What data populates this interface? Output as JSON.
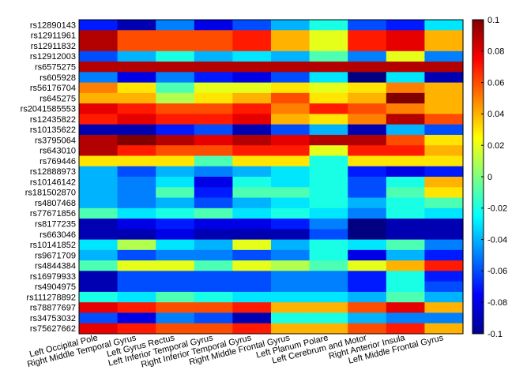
{
  "chart_data": {
    "type": "heatmap",
    "title": "",
    "xlabel": "",
    "ylabel": "",
    "colormap": "jet",
    "clim": [
      -0.1,
      0.1
    ],
    "colorbar_ticks": [
      0.1,
      0.08,
      0.06,
      0.04,
      0.02,
      0,
      -0.02,
      -0.04,
      -0.06,
      -0.08,
      -0.1
    ],
    "colorbar_tick_labels": [
      "0.1",
      "0.08",
      "0.06",
      "0.04",
      "0.02",
      "0",
      "-0.02",
      "-0.04",
      "-0.06",
      "-0.08",
      "-0.1"
    ],
    "columns": [
      "Left Occipital Pole",
      "Right Middle Temporal Gyrus",
      "Left Gyrus Rectus",
      "Left Inferior Temporal Gyrus",
      "Right Inferior Temporal Gyrus",
      "Right Middle Frontal Gyrus",
      "Left Planum Polare",
      "Left Cerebrum and Motor",
      "Right Anterior Insula",
      "Left Middle Frontal Gyrus"
    ],
    "rows": [
      "rs12890143",
      "rs12911961",
      "rs12911832",
      "rs12912003",
      "rs6575275",
      "rs605928",
      "rs56176704",
      "rs645275",
      "rs2041585553",
      "rs12435822",
      "rs10135622",
      "rs3795064",
      "rs643010",
      "rs769446",
      "rs12888973",
      "rs10146142",
      "rs181502870",
      "rs4807468",
      "rs77671856",
      "rs8177235",
      "rs663046",
      "rs10141852",
      "rs9671709",
      "rs4844384",
      "rs16979933",
      "rs4904975",
      "rs111278892",
      "rs78877697",
      "rs34753032",
      "rs75627662"
    ],
    "values": [
      [
        -0.07,
        -0.09,
        -0.05,
        -0.08,
        -0.06,
        -0.04,
        -0.02,
        -0.06,
        -0.07,
        -0.03
      ],
      [
        0.09,
        0.06,
        0.06,
        0.06,
        0.07,
        0.04,
        0.02,
        0.07,
        0.08,
        0.04
      ],
      [
        0.09,
        0.06,
        0.06,
        0.06,
        0.07,
        0.04,
        0.02,
        0.07,
        0.08,
        0.04
      ],
      [
        -0.06,
        -0.04,
        -0.02,
        -0.04,
        -0.03,
        -0.04,
        -0.01,
        -0.05,
        0.02,
        -0.05
      ],
      [
        0.09,
        0.09,
        0.09,
        0.09,
        0.09,
        0.09,
        0.09,
        0.09,
        0.09,
        0.09
      ],
      [
        -0.05,
        -0.08,
        -0.05,
        -0.07,
        -0.08,
        -0.06,
        -0.03,
        -0.1,
        -0.03,
        -0.09
      ],
      [
        0.05,
        0.03,
        -0.01,
        0.02,
        0.02,
        0.03,
        0.02,
        0.03,
        0.05,
        0.04
      ],
      [
        0.04,
        0.04,
        0.01,
        0.03,
        0.04,
        0.06,
        0.03,
        0.04,
        0.1,
        0.04
      ],
      [
        0.08,
        0.07,
        0.06,
        0.06,
        0.07,
        0.05,
        0.07,
        0.06,
        0.05,
        0.04
      ],
      [
        0.07,
        0.08,
        0.07,
        0.07,
        0.08,
        0.04,
        0.03,
        0.05,
        0.09,
        0.06
      ],
      [
        -0.09,
        -0.09,
        -0.07,
        -0.06,
        -0.09,
        -0.06,
        -0.04,
        -0.09,
        -0.04,
        -0.06
      ],
      [
        0.09,
        0.1,
        0.09,
        0.08,
        0.09,
        0.08,
        0.09,
        0.09,
        0.06,
        0.03
      ],
      [
        0.09,
        0.07,
        0.06,
        0.06,
        0.07,
        0.07,
        0.02,
        0.07,
        0.07,
        0.04
      ],
      [
        0.03,
        0.03,
        0.03,
        -0.01,
        0.03,
        0.03,
        -0.02,
        0.03,
        0.03,
        0.03
      ],
      [
        -0.04,
        -0.06,
        -0.04,
        -0.05,
        -0.04,
        -0.03,
        -0.02,
        -0.07,
        -0.08,
        -0.07
      ],
      [
        -0.04,
        -0.05,
        -0.03,
        -0.08,
        -0.02,
        -0.03,
        -0.02,
        -0.06,
        -0.02,
        0.04
      ],
      [
        -0.04,
        -0.05,
        -0.01,
        -0.07,
        -0.01,
        -0.01,
        -0.02,
        -0.06,
        -0.01,
        0.03
      ],
      [
        -0.04,
        -0.05,
        -0.04,
        -0.06,
        -0.04,
        -0.03,
        -0.02,
        -0.04,
        -0.02,
        -0.01
      ],
      [
        -0.01,
        -0.03,
        -0.02,
        -0.01,
        -0.03,
        -0.02,
        -0.03,
        -0.05,
        -0.02,
        -0.03
      ],
      [
        -0.09,
        -0.08,
        -0.07,
        -0.08,
        -0.08,
        -0.07,
        -0.05,
        -0.1,
        -0.09,
        -0.09
      ],
      [
        -0.09,
        -0.09,
        -0.08,
        -0.09,
        -0.09,
        -0.09,
        -0.06,
        -0.1,
        -0.09,
        -0.09
      ],
      [
        -0.03,
        0.01,
        -0.03,
        -0.04,
        0.02,
        -0.04,
        -0.02,
        -0.03,
        -0.01,
        -0.05
      ],
      [
        -0.04,
        -0.06,
        -0.05,
        -0.05,
        -0.06,
        -0.05,
        -0.02,
        -0.08,
        -0.04,
        -0.07
      ],
      [
        -0.01,
        0.02,
        0.02,
        -0.01,
        0.02,
        0.01,
        -0.01,
        0.02,
        0.04,
        0.07
      ],
      [
        -0.09,
        -0.06,
        -0.06,
        -0.06,
        -0.06,
        -0.05,
        -0.05,
        -0.07,
        -0.02,
        -0.07
      ],
      [
        -0.09,
        -0.06,
        -0.06,
        -0.06,
        -0.06,
        -0.05,
        -0.05,
        -0.07,
        -0.02,
        -0.06
      ],
      [
        -0.02,
        -0.03,
        -0.01,
        -0.02,
        -0.03,
        -0.03,
        -0.03,
        -0.04,
        -0.01,
        -0.04
      ],
      [
        0.08,
        0.07,
        0.06,
        0.06,
        0.07,
        0.04,
        0.04,
        0.06,
        0.08,
        0.04
      ],
      [
        -0.06,
        -0.08,
        -0.05,
        -0.06,
        -0.09,
        -0.02,
        -0.02,
        -0.04,
        -0.05,
        -0.05
      ],
      [
        0.08,
        0.07,
        0.06,
        0.06,
        0.07,
        0.04,
        0.04,
        0.06,
        0.07,
        0.04
      ]
    ]
  }
}
